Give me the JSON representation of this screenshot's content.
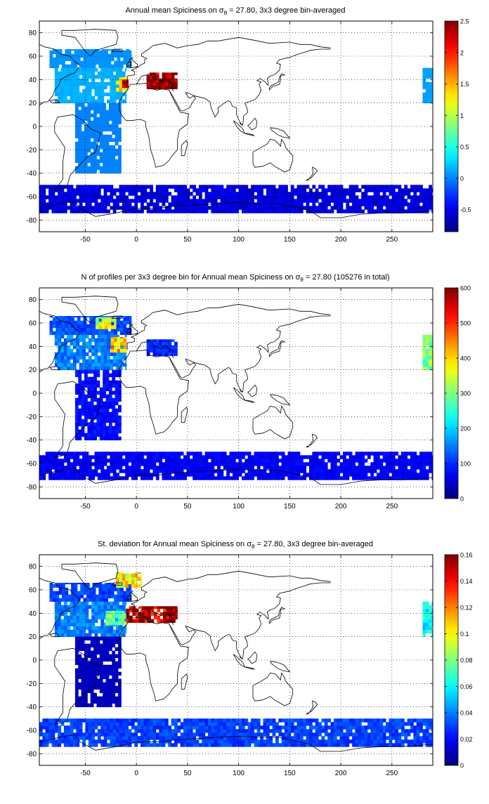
{
  "charts": [
    {
      "title_main": "Annual mean Spiciness on ",
      "title_sym": "σ",
      "title_sub": "θ",
      "title_rest": " = 27.80, 3x3 degree bin-averaged",
      "colorbar_ticks": [
        "2.5",
        "2",
        "1.5",
        "1",
        "0.5",
        "0",
        "-0.5"
      ]
    },
    {
      "title_main": "N of profiles per 3x3 degree bin for Annual mean Spiciness on ",
      "title_sym": "σ",
      "title_sub": "θ",
      "title_rest": " = 27.80 (105276 in total)",
      "colorbar_ticks": [
        "600",
        "500",
        "400",
        "300",
        "200",
        "100",
        "0"
      ]
    },
    {
      "title_main": "St. deviation for Annual mean Spiciness on ",
      "title_sym": "σ",
      "title_sub": "θ",
      "title_rest": " = 27.80, 3x3 degree bin-averaged",
      "colorbar_ticks": [
        "0.16",
        "0.14",
        "0.12",
        "0.1",
        "0.08",
        "0.06",
        "0.04",
        "0.02",
        "0"
      ]
    }
  ],
  "chart_data": [
    {
      "type": "heatmap",
      "title": "Annual mean Spiciness on σθ = 27.80, 3x3 degree bin-averaged",
      "xlim": [
        -95,
        290
      ],
      "ylim": [
        -90,
        90
      ],
      "x_ticks": [
        -50,
        0,
        50,
        100,
        150,
        200,
        250
      ],
      "y_ticks": [
        -80,
        -60,
        -40,
        -20,
        0,
        20,
        40,
        60,
        80
      ],
      "x_tick_labels": [
        "-50",
        "0",
        "50",
        "100",
        "150",
        "200",
        "250"
      ],
      "y_tick_labels": [
        "-80",
        "-60",
        "-40",
        "-20",
        "0",
        "20",
        "40",
        "60",
        "80"
      ],
      "bin_size_deg": 3,
      "grid": true,
      "colorbar_range": [
        -0.85,
        2.5
      ],
      "colorbar_position": "right",
      "regions": [
        {
          "lon": [
            -85,
            -5
          ],
          "lat": [
            50,
            66
          ],
          "value": 0.05
        },
        {
          "lon": [
            -80,
            -10
          ],
          "lat": [
            20,
            50
          ],
          "value": 0.15
        },
        {
          "lon": [
            -60,
            -15
          ],
          "lat": [
            -40,
            20
          ],
          "value": 0.0
        },
        {
          "lon": [
            -20,
            -8
          ],
          "lat": [
            30,
            42
          ],
          "value": 1.3
        },
        {
          "lon": [
            -14,
            -8
          ],
          "lat": [
            33,
            40
          ],
          "value": 2.1
        },
        {
          "lon": [
            10,
            40
          ],
          "lat": [
            32,
            46
          ],
          "value": 2.5
        },
        {
          "lon": [
            -95,
            290
          ],
          "lat": [
            -74,
            -50
          ],
          "value": -0.55
        },
        {
          "lon": [
            280,
            290
          ],
          "lat": [
            20,
            50
          ],
          "value": 0.1
        }
      ]
    },
    {
      "type": "heatmap",
      "title": "N of profiles per 3x3 degree bin for Annual mean Spiciness on σθ = 27.80 (105276 in total)",
      "total_profiles": 105276,
      "xlim": [
        -95,
        290
      ],
      "ylim": [
        -90,
        90
      ],
      "x_ticks": [
        -50,
        0,
        50,
        100,
        150,
        200,
        250
      ],
      "y_ticks": [
        -80,
        -60,
        -40,
        -20,
        0,
        20,
        40,
        60,
        80
      ],
      "x_tick_labels": [
        "-50",
        "0",
        "50",
        "100",
        "150",
        "200",
        "250"
      ],
      "y_tick_labels": [
        "-80",
        "-60",
        "-40",
        "-20",
        "0",
        "20",
        "40",
        "60",
        "80"
      ],
      "bin_size_deg": 3,
      "grid": true,
      "colorbar_range": [
        0,
        600
      ],
      "colorbar_position": "right",
      "regions": [
        {
          "lon": [
            -85,
            -5
          ],
          "lat": [
            50,
            66
          ],
          "value": 120
        },
        {
          "lon": [
            -80,
            -10
          ],
          "lat": [
            20,
            50
          ],
          "value": 150
        },
        {
          "lon": [
            -60,
            -15
          ],
          "lat": [
            -40,
            20
          ],
          "value": 80
        },
        {
          "lon": [
            -40,
            -20
          ],
          "lat": [
            55,
            65
          ],
          "value": 350
        },
        {
          "lon": [
            -25,
            -10
          ],
          "lat": [
            35,
            48
          ],
          "value": 400
        },
        {
          "lon": [
            10,
            40
          ],
          "lat": [
            32,
            46
          ],
          "value": 100
        },
        {
          "lon": [
            -95,
            290
          ],
          "lat": [
            -74,
            -50
          ],
          "value": 70
        },
        {
          "lon": [
            280,
            290
          ],
          "lat": [
            20,
            50
          ],
          "value": 300
        }
      ]
    },
    {
      "type": "heatmap",
      "title": "St. deviation for Annual mean Spiciness on σθ = 27.80, 3x3 degree bin-averaged",
      "xlim": [
        -95,
        290
      ],
      "ylim": [
        -90,
        90
      ],
      "x_ticks": [
        -50,
        0,
        50,
        100,
        150,
        200,
        250
      ],
      "y_ticks": [
        -80,
        -60,
        -40,
        -20,
        0,
        20,
        40,
        60,
        80
      ],
      "x_tick_labels": [
        "-50",
        "0",
        "50",
        "100",
        "150",
        "200",
        "250"
      ],
      "y_tick_labels": [
        "-80",
        "-60",
        "-40",
        "-20",
        "0",
        "20",
        "40",
        "60",
        "80"
      ],
      "bin_size_deg": 3,
      "grid": true,
      "colorbar_range": [
        0,
        0.16
      ],
      "colorbar_position": "right",
      "regions": [
        {
          "lon": [
            -85,
            -5
          ],
          "lat": [
            50,
            66
          ],
          "value": 0.03
        },
        {
          "lon": [
            -80,
            -10
          ],
          "lat": [
            20,
            50
          ],
          "value": 0.04
        },
        {
          "lon": [
            -60,
            -15
          ],
          "lat": [
            -40,
            20
          ],
          "value": 0.01
        },
        {
          "lon": [
            -30,
            -10
          ],
          "lat": [
            30,
            42
          ],
          "value": 0.08
        },
        {
          "lon": [
            -10,
            40
          ],
          "lat": [
            32,
            46
          ],
          "value": 0.16
        },
        {
          "lon": [
            -20,
            5
          ],
          "lat": [
            62,
            75
          ],
          "value": 0.1
        },
        {
          "lon": [
            -95,
            290
          ],
          "lat": [
            -74,
            -50
          ],
          "value": 0.03
        },
        {
          "lon": [
            280,
            290
          ],
          "lat": [
            20,
            50
          ],
          "value": 0.06
        }
      ]
    }
  ]
}
